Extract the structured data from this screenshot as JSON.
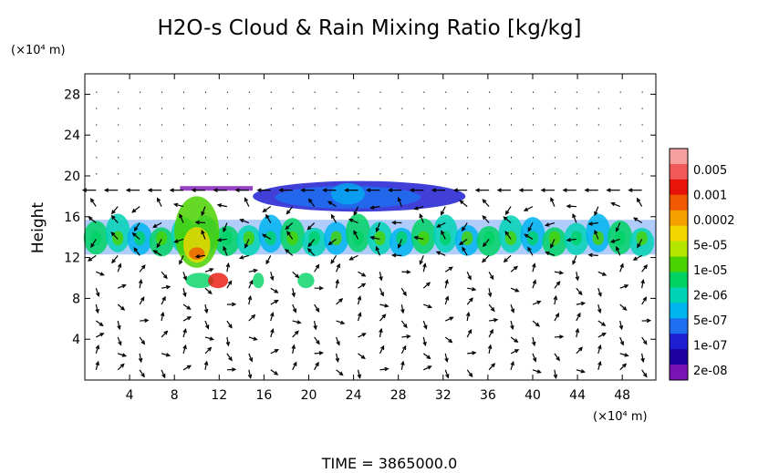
{
  "chart_data": {
    "type": "heatmap",
    "title": "H2O-s Cloud & Rain Mixing Ratio [kg/kg]",
    "ylabel": "Height",
    "y_unit": "(×10⁴ m)",
    "x_unit": "(×10⁴ m)",
    "xlim": [
      0,
      51
    ],
    "ylim": [
      0,
      30
    ],
    "x_ticks": [
      4,
      8,
      12,
      16,
      20,
      24,
      28,
      32,
      36,
      40,
      44,
      48
    ],
    "y_ticks": [
      4,
      8,
      12,
      16,
      20,
      24,
      28
    ],
    "colorbar": {
      "scale": "log",
      "labels": [
        "0.005",
        "0.001",
        "0.0002",
        "5e-05",
        "1e-05",
        "2e-06",
        "5e-07",
        "1e-07",
        "2e-08"
      ],
      "colors": [
        "#f7a0a0",
        "#f25a5a",
        "#e8140a",
        "#f05a00",
        "#f6a000",
        "#f2d600",
        "#b4e600",
        "#4ad200",
        "#00d264",
        "#00d2b4",
        "#00b4f0",
        "#1e6ef0",
        "#1e1ed2",
        "#1e00a0",
        "#7814b4"
      ]
    },
    "series": [
      {
        "x": [
          0,
          51
        ],
        "y": [
          12,
          16
        ]
      },
      {
        "x": [
          8,
          12
        ],
        "y": [
          11,
          18
        ]
      },
      {
        "x": [
          15,
          34
        ],
        "y": [
          16.5,
          19.5
        ]
      },
      {
        "x": [
          8,
          19
        ],
        "y": [
          9,
          10.5
        ]
      }
    ]
  },
  "footer": {
    "time_label": "TIME = 3865000.0"
  }
}
